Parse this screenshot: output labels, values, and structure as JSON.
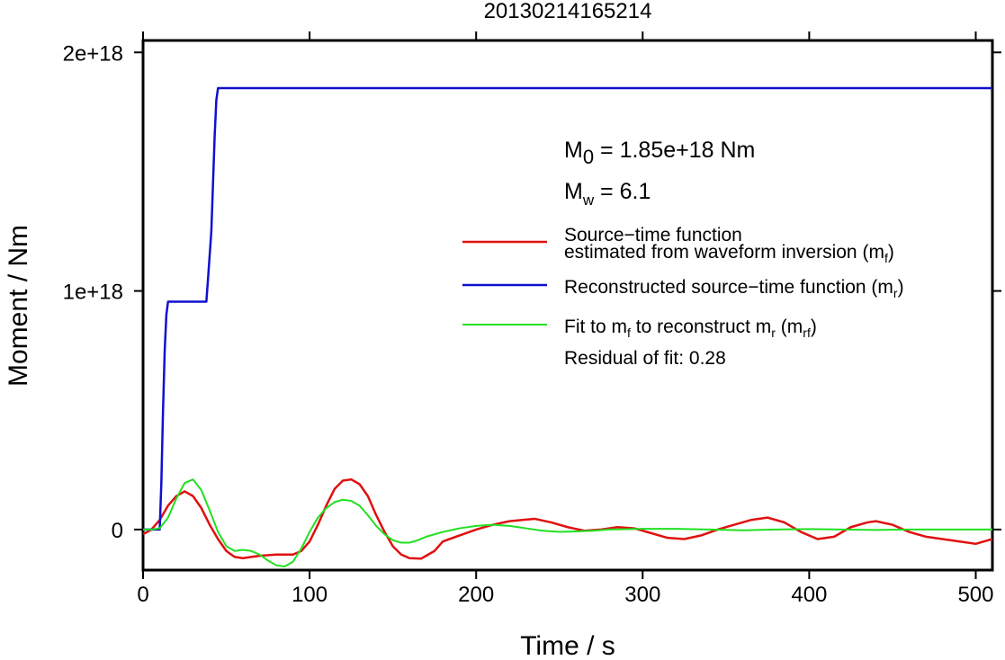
{
  "chart_data": {
    "type": "line",
    "title": "20130214165214",
    "xlabel": "Time / s",
    "ylabel": "Moment / Nm",
    "xlim": [
      0,
      510
    ],
    "ylim": [
      -1.7e+17,
      2.05e+18
    ],
    "x_ticks": [
      0,
      100,
      200,
      300,
      400,
      500
    ],
    "x_tick_labels": [
      "0",
      "100",
      "200",
      "300",
      "400",
      "500"
    ],
    "y_ticks": [
      0,
      1e+18,
      2e+18
    ],
    "y_tick_labels": [
      "0",
      "1e+18",
      "2e+18"
    ],
    "grid": false,
    "legend_position": "right",
    "annotations": {
      "m0_prefix": "M",
      "m0_sub": "0",
      "m0_value": " = 1.85e+18 Nm",
      "mw_prefix": "M",
      "mw_sub": "w",
      "mw_value": " = 6.1",
      "residual": "Residual of fit: 0.28"
    },
    "legend": [
      {
        "line1": "Source−time function",
        "line2": "estimated from waveform inversion (m",
        "sub": "f",
        "tail": ")",
        "color": "#e01010"
      },
      {
        "line1": "Reconstructed source−time function (m",
        "sub": "r",
        "tail": ")",
        "color": "#1010d0"
      },
      {
        "line1": "Fit to m",
        "sub": "f",
        "mid": " to reconstruct m",
        "sub2": "r",
        "mid2": " (m",
        "sub3": "rf",
        "tail": ")",
        "color": "#20e020"
      }
    ],
    "series": [
      {
        "name": "Source−time function estimated from waveform inversion (mf)",
        "color": "#e01010",
        "x": [
          0,
          5,
          10,
          15,
          20,
          25,
          30,
          35,
          40,
          45,
          50,
          55,
          60,
          65,
          70,
          80,
          90,
          95,
          100,
          105,
          110,
          115,
          120,
          125,
          130,
          135,
          140,
          145,
          150,
          155,
          160,
          167,
          175,
          180,
          190,
          200,
          210,
          220,
          235,
          245,
          255,
          265,
          275,
          285,
          295,
          305,
          315,
          325,
          335,
          345,
          355,
          365,
          375,
          385,
          395,
          405,
          415,
          425,
          435,
          440,
          450,
          460,
          470,
          480,
          490,
          500,
          510
        ],
        "y": [
          -2e+16,
          0,
          4e+16,
          1e+17,
          1.4e+17,
          1.6e+17,
          1.4e+17,
          9e+16,
          2e+16,
          -4e+16,
          -9e+16,
          -1.15e+17,
          -1.2e+17,
          -1.15e+17,
          -1.1e+17,
          -1.05e+17,
          -1.05e+17,
          -9e+16,
          -5e+16,
          2e+16,
          1e+17,
          1.7e+17,
          2.05e+17,
          2.1e+17,
          1.9e+17,
          1.4e+17,
          6e+16,
          -1e+16,
          -7e+16,
          -1.05e+17,
          -1.2e+17,
          -1.22e+17,
          -9e+16,
          -5e+16,
          -2.5e+16,
          0,
          2e+16,
          3.5e+16,
          4.5e+16,
          3e+16,
          1e+16,
          -5000000000000000.0,
          0,
          1e+16,
          5000000000000000.0,
          -1.5e+16,
          -3.5e+16,
          -4e+16,
          -2.5e+16,
          0,
          2e+16,
          4e+16,
          5e+16,
          3e+16,
          -1e+16,
          -4e+16,
          -3e+16,
          1e+16,
          3e+16,
          3.5e+16,
          2e+16,
          -1e+16,
          -3e+16,
          -4e+16,
          -5e+16,
          -6e+16,
          -4e+16
        ]
      },
      {
        "name": "Reconstructed source−time function (mr)",
        "color": "#1010d0",
        "x": [
          0,
          10,
          11,
          12,
          13,
          14,
          15,
          38,
          39,
          40,
          41,
          42,
          43,
          44,
          45,
          46,
          47,
          510
        ],
        "y": [
          0,
          0,
          2e+17,
          5e+17,
          7.5e+17,
          9e+17,
          9.55e+17,
          9.55e+17,
          1.05e+18,
          1.15e+18,
          1.25e+18,
          1.45e+18,
          1.65e+18,
          1.8e+18,
          1.85e+18,
          1.85e+18,
          1.85e+18,
          1.85e+18
        ]
      },
      {
        "name": "Fit to mf to reconstruct mr (mrf)",
        "color": "#20e020",
        "x": [
          0,
          5,
          10,
          15,
          20,
          25,
          30,
          35,
          40,
          45,
          50,
          55,
          60,
          65,
          70,
          75,
          80,
          85,
          90,
          95,
          100,
          105,
          110,
          115,
          120,
          125,
          130,
          135,
          140,
          145,
          150,
          155,
          160,
          165,
          170,
          180,
          190,
          200,
          210,
          220,
          230,
          240,
          250,
          260,
          270,
          280,
          300,
          320,
          340,
          360,
          380,
          400,
          420,
          440,
          460,
          480,
          510
        ],
        "y": [
          0,
          0,
          5000000000000000.0,
          5e+16,
          1.3e+17,
          1.95e+17,
          2.1e+17,
          1.65e+17,
          8e+16,
          -1e+16,
          -7e+16,
          -9e+16,
          -8.5e+16,
          -9e+16,
          -1.05e+17,
          -1.3e+17,
          -1.5e+17,
          -1.55e+17,
          -1.35e+17,
          -8e+16,
          -1e+16,
          5e+16,
          9e+16,
          1.15e+17,
          1.25e+17,
          1.2e+17,
          1e+17,
          6e+16,
          1.5e+16,
          -2e+16,
          -4.5e+16,
          -5.5e+16,
          -5.5e+16,
          -4.5e+16,
          -3e+16,
          -1e+16,
          5000000000000000.0,
          1.5e+16,
          2e+16,
          1.5e+16,
          5000000000000000.0,
          -5000000000000000.0,
          -1e+16,
          -8000000000000000.0,
          -5000000000000000.0,
          0,
          3000000000000000.0,
          3000000000000000.0,
          0,
          -3000000000000000.0,
          0,
          2000000000000000.0,
          0,
          -2000000000000000.0,
          0,
          0,
          0
        ]
      }
    ]
  }
}
